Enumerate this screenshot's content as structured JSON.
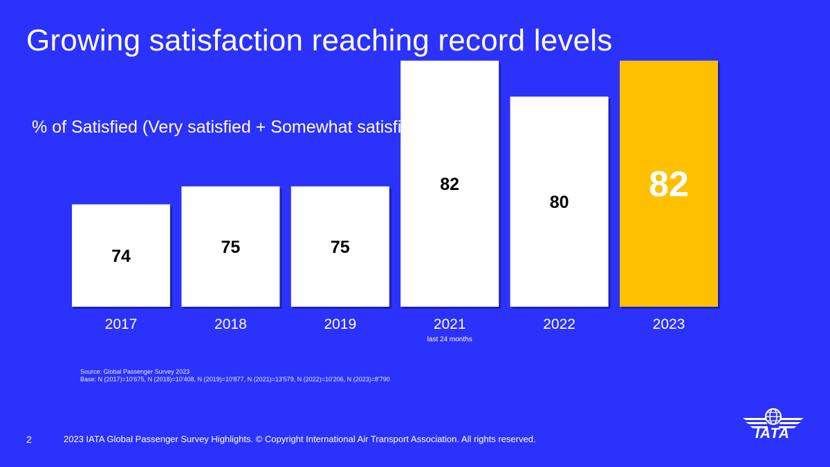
{
  "title": "Growing satisfaction reaching record levels",
  "subtitle": "% of Satisfied (Very satisfied + Somewhat satisfied)",
  "chart_data": {
    "type": "bar",
    "categories": [
      "2017",
      "2018",
      "2019",
      "2021",
      "2022",
      "2023"
    ],
    "category_notes": [
      "",
      "",
      "",
      "last 24 months",
      "",
      ""
    ],
    "values": [
      74,
      75,
      75,
      82,
      80,
      82
    ],
    "highlight_index": 5,
    "colors": {
      "bar": "#ffffff",
      "highlight": "#ffc000",
      "label": "#000000",
      "highlight_label": "#ffffff"
    }
  },
  "source": {
    "line1": "Source: Global Passenger Survey 2023",
    "line2": "Base: N (2017)=10'675, N (2018)=10'408, N (2019)=10'877, N (2021)=13'579, N (2022)=10'206, N (2023)=8'790"
  },
  "footer": {
    "page_number": "2",
    "text": "2023 IATA Global Passenger Survey Highlights. © Copyright International Air Transport Association.  All rights reserved."
  },
  "logo": {
    "text": "IATA",
    "icon": "globe-wings-icon"
  }
}
